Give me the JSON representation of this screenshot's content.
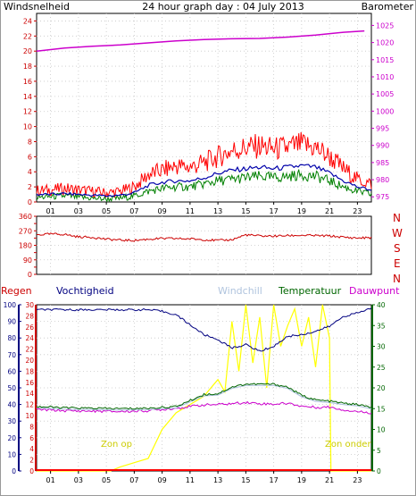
{
  "header": {
    "left_title": "Windsnelheid",
    "center_title": "24 hour graph day : 04 July 2013",
    "right_title": "Barometer"
  },
  "x_ticks": [
    "01",
    "03",
    "05",
    "07",
    "09",
    "11",
    "13",
    "15",
    "17",
    "19",
    "21",
    "23"
  ],
  "labels": {
    "regen": "Regen",
    "vochtigheid": "Vochtigheid",
    "windchill": "Windchill",
    "temperatuur": "Temperatuur",
    "dauwpunt": "Dauwpunt",
    "zon_op": "Zon op",
    "zon_onder": "Zon onder"
  },
  "compass": [
    "N",
    "W",
    "S",
    "E",
    "N"
  ],
  "colors": {
    "wind": "#ff0000",
    "wind_avg": "#0000aa",
    "wind_low": "#008000",
    "barometer": "#cc00cc",
    "direction": "#cc0000",
    "humidity": "#000080",
    "windchill": "#b0c4de",
    "temperature": "#006600",
    "dewpoint": "#cc00cc",
    "solar": "#ffff00",
    "rain": "#ff0000",
    "left_axis": "#cc0000",
    "right_axis_green": "#006600",
    "humidity_axis": "#000080"
  },
  "chart_data": [
    {
      "type": "line",
      "name": "wind-barometer",
      "title": "24 hour graph day : 04 July 2013",
      "ylabel": "Windsnelheid",
      "y2label": "Barometer",
      "ylim": [
        0,
        25
      ],
      "y_ticks": [
        0,
        2,
        4,
        6,
        8,
        10,
        12,
        14,
        16,
        18,
        20,
        22,
        24
      ],
      "y2lim": [
        973.5,
        1028.5
      ],
      "y2_ticks": [
        975,
        980,
        985,
        990,
        995,
        1000,
        1005,
        1010,
        1015,
        1020,
        1025
      ],
      "x_ticks": [
        "01",
        "03",
        "05",
        "07",
        "09",
        "11",
        "13",
        "15",
        "17",
        "19",
        "21",
        "23"
      ],
      "xlim": [
        0,
        24
      ],
      "grid": true,
      "series": [
        {
          "axis": "y",
          "x": [
            0,
            1,
            2,
            3,
            4,
            5,
            6,
            7,
            8,
            9,
            10,
            11,
            12,
            13,
            14,
            15,
            16,
            17,
            18,
            19,
            20,
            21,
            22,
            23,
            24
          ],
          "values": [
            1.5,
            1.6,
            1.8,
            1.6,
            1.4,
            1.2,
            1.4,
            2.0,
            3.6,
            4.2,
            4.8,
            4.6,
            5.2,
            6.0,
            6.8,
            7.2,
            7.4,
            7.0,
            7.2,
            7.6,
            7.2,
            6.0,
            4.4,
            3.0,
            2.4
          ]
        },
        {
          "axis": "y",
          "x": [
            0,
            1,
            2,
            3,
            4,
            5,
            6,
            7,
            8,
            9,
            10,
            11,
            12,
            13,
            14,
            15,
            16,
            17,
            18,
            19,
            20,
            21,
            22,
            23,
            24
          ],
          "values": [
            1.0,
            1.0,
            1.1,
            1.0,
            0.9,
            0.8,
            0.9,
            1.2,
            2.2,
            2.6,
            2.8,
            2.8,
            3.2,
            3.8,
            4.2,
            4.4,
            4.6,
            4.4,
            4.6,
            4.8,
            4.6,
            3.8,
            2.8,
            2.0,
            1.6
          ]
        },
        {
          "axis": "y",
          "x": [
            0,
            1,
            2,
            3,
            4,
            5,
            6,
            7,
            8,
            9,
            10,
            11,
            12,
            13,
            14,
            15,
            16,
            17,
            18,
            19,
            20,
            21,
            22,
            23,
            24
          ],
          "values": [
            0.6,
            0.7,
            0.8,
            0.6,
            0.5,
            0.4,
            0.5,
            0.8,
            1.4,
            1.8,
            2.0,
            2.0,
            2.4,
            2.8,
            3.0,
            3.2,
            3.4,
            3.2,
            3.4,
            3.6,
            3.4,
            2.8,
            2.0,
            1.4,
            1.0
          ]
        },
        {
          "axis": "y2",
          "x": [
            0,
            2,
            4,
            6,
            8,
            10,
            12,
            14,
            16,
            18,
            20,
            22,
            23.5
          ],
          "values": [
            1017.5,
            1018.4,
            1018.9,
            1019.3,
            1019.9,
            1020.5,
            1020.9,
            1021.1,
            1021.2,
            1021.6,
            1022.2,
            1023.0,
            1023.4
          ]
        }
      ]
    },
    {
      "type": "line",
      "name": "wind-direction",
      "ylim": [
        0,
        360
      ],
      "y_ticks": [
        0,
        45,
        90,
        135,
        180,
        225,
        270,
        315,
        360
      ],
      "xlim": [
        0,
        24
      ],
      "grid": true,
      "series": [
        {
          "x": [
            0,
            1,
            2,
            3,
            4,
            5,
            6,
            7,
            8,
            9,
            10,
            11,
            12,
            13,
            14,
            15,
            16,
            17,
            18,
            19,
            20,
            21,
            22,
            23,
            24
          ],
          "values": [
            245,
            250,
            248,
            232,
            230,
            218,
            212,
            210,
            218,
            222,
            222,
            220,
            215,
            210,
            215,
            245,
            238,
            237,
            240,
            242,
            240,
            238,
            230,
            225,
            228
          ]
        }
      ]
    },
    {
      "type": "line",
      "name": "humidity-temperature",
      "xlim": [
        0,
        24
      ],
      "x_ticks": [
        "01",
        "03",
        "05",
        "07",
        "09",
        "11",
        "13",
        "15",
        "17",
        "19",
        "21",
        "23"
      ],
      "humidity_ticks": [
        0,
        10,
        20,
        30,
        40,
        50,
        60,
        70,
        80,
        90,
        100
      ],
      "rain_ticks": [
        0,
        2,
        4,
        6,
        8,
        10,
        12,
        14,
        16,
        18,
        20,
        22,
        24,
        26,
        28,
        30
      ],
      "temp_ticks": [
        0,
        5,
        10,
        15,
        20,
        25,
        30,
        35,
        40
      ],
      "grid": true,
      "series": [
        {
          "axis": "humidity",
          "x": [
            0,
            1,
            2,
            3,
            4,
            5,
            6,
            7,
            8,
            9,
            10,
            11,
            12,
            13,
            14,
            15,
            16,
            17,
            18,
            19,
            20,
            21,
            22,
            23,
            24
          ],
          "values": [
            97,
            97,
            97,
            97,
            97,
            97,
            97,
            97,
            97,
            96,
            94,
            88,
            82,
            79,
            74,
            76,
            72,
            75,
            81,
            82,
            84,
            87,
            93,
            95,
            98
          ]
        },
        {
          "axis": "temp",
          "x": [
            0,
            2,
            4,
            6,
            8,
            10,
            12,
            13,
            14,
            15,
            16,
            17,
            18,
            19,
            20,
            21,
            22,
            23,
            24
          ],
          "values": [
            15.5,
            15.2,
            15.1,
            15.0,
            15.1,
            15.5,
            18.4,
            18.6,
            20.2,
            20.9,
            20.9,
            20.9,
            20.2,
            18.2,
            17.1,
            16.8,
            16.3,
            16.0,
            15.3
          ]
        },
        {
          "axis": "temp",
          "x": [
            0,
            2,
            4,
            6,
            8,
            10,
            12,
            13,
            14,
            15,
            16,
            17,
            18,
            19,
            20,
            21,
            22,
            23,
            24
          ],
          "values": [
            15.5,
            15.2,
            15.1,
            15.0,
            15.1,
            15.5,
            18.4,
            18.6,
            20.2,
            20.9,
            20.9,
            20.9,
            20.2,
            18.2,
            17.1,
            16.8,
            16.3,
            16.0,
            15.3
          ]
        },
        {
          "axis": "temp",
          "x": [
            0,
            2,
            4,
            6,
            8,
            10,
            12,
            13,
            14,
            15,
            16,
            17,
            18,
            19,
            20,
            21,
            22,
            23,
            24
          ],
          "values": [
            14.8,
            14.5,
            14.4,
            14.3,
            14.5,
            15.1,
            15.9,
            16.0,
            16.2,
            16.5,
            16.2,
            16.1,
            16.3,
            15.6,
            15.3,
            15.4,
            14.7,
            14.3,
            14.0
          ]
        },
        {
          "axis": "temp",
          "x": [
            0,
            5.3,
            6,
            7,
            8,
            9,
            10,
            11,
            12,
            13,
            13.5,
            14,
            14.5,
            15,
            15.5,
            16,
            16.5,
            17,
            17.5,
            18,
            18.5,
            19,
            19.5,
            20,
            20.5,
            21,
            21.1,
            24
          ],
          "values": [
            0,
            0,
            1,
            2,
            3,
            10,
            14,
            16,
            18,
            22,
            19,
            36,
            24,
            40,
            26,
            37,
            20,
            40,
            30,
            35,
            39,
            30,
            37,
            25,
            40,
            32,
            0,
            0
          ]
        },
        {
          "axis": "rain",
          "x": [
            0,
            24
          ],
          "values": [
            0,
            0
          ]
        }
      ]
    }
  ]
}
